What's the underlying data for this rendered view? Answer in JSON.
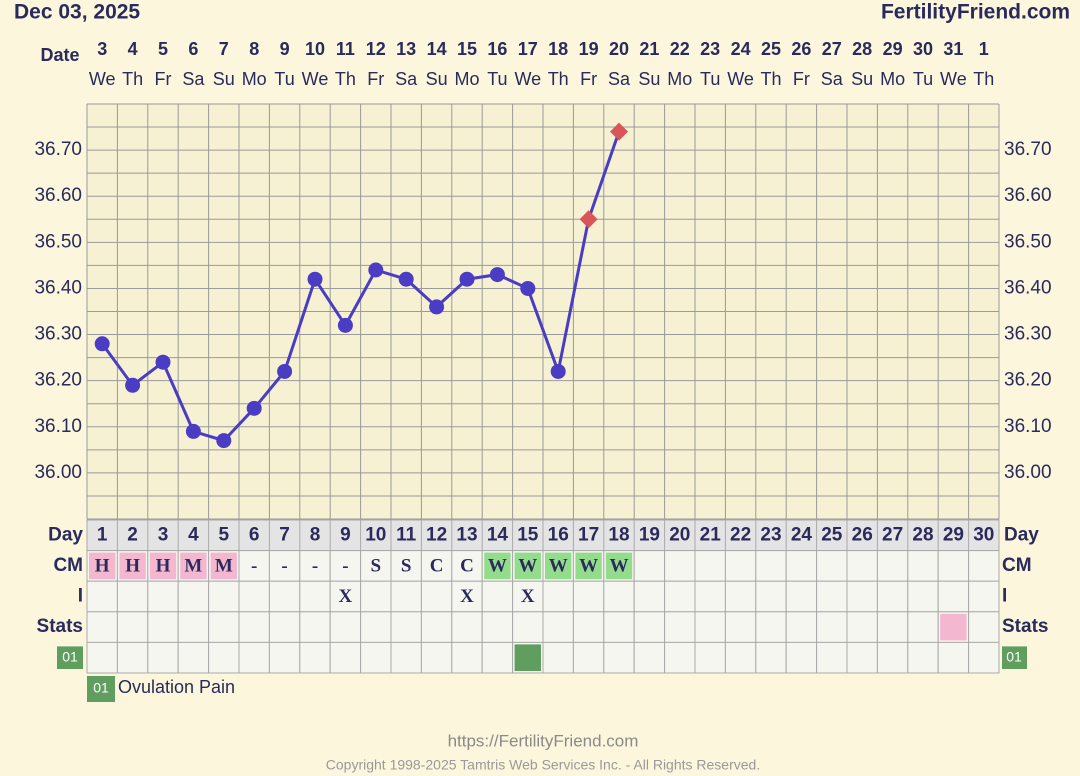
{
  "header": {
    "date": "Dec 03, 2025",
    "site": "FertilityFriend.com"
  },
  "chart_data": {
    "type": "line",
    "x_label": "Date",
    "dates": [
      3,
      4,
      5,
      6,
      7,
      8,
      9,
      10,
      11,
      12,
      13,
      14,
      15,
      16,
      17,
      18,
      19,
      20,
      21,
      22,
      23,
      24,
      25,
      26,
      27,
      28,
      29,
      30,
      31,
      1
    ],
    "weekdays": [
      "We",
      "Th",
      "Fr",
      "Sa",
      "Su",
      "Mo",
      "Tu",
      "We",
      "Th",
      "Fr",
      "Sa",
      "Su",
      "Mo",
      "Tu",
      "We",
      "Th",
      "Fr",
      "Sa",
      "Su",
      "Mo",
      "Tu",
      "We",
      "Th",
      "Fr",
      "Sa",
      "Su",
      "Mo",
      "Tu",
      "We",
      "Th"
    ],
    "day_label": "Day",
    "categories": [
      1,
      2,
      3,
      4,
      5,
      6,
      7,
      8,
      9,
      10,
      11,
      12,
      13,
      14,
      15,
      16,
      17,
      18,
      19,
      20,
      21,
      22,
      23,
      24,
      25,
      26,
      27,
      28,
      29,
      30
    ],
    "series": [
      {
        "color": "#4b3cc4",
        "values": [
          36.28,
          36.19,
          36.24,
          36.09,
          36.07,
          36.14,
          36.22,
          36.42,
          36.32,
          36.44,
          36.42,
          36.36,
          36.42,
          36.43,
          36.4,
          36.22,
          36.55,
          36.74,
          null,
          null,
          null,
          null,
          null,
          null,
          null,
          null,
          null,
          null,
          null,
          null
        ],
        "marker_colors": [
          "#4b3cc4",
          "#4b3cc4",
          "#4b3cc4",
          "#4b3cc4",
          "#4b3cc4",
          "#4b3cc4",
          "#4b3cc4",
          "#4b3cc4",
          "#4b3cc4",
          "#4b3cc4",
          "#4b3cc4",
          "#4b3cc4",
          "#4b3cc4",
          "#4b3cc4",
          "#4b3cc4",
          "#4b3cc4",
          "#d9555a",
          "#d9555a",
          null,
          null,
          null,
          null,
          null,
          null,
          null,
          null,
          null,
          null,
          null,
          null
        ],
        "markers": [
          "circle",
          "circle",
          "circle",
          "circle",
          "circle",
          "circle",
          "circle",
          "circle",
          "circle",
          "circle",
          "circle",
          "circle",
          "circle",
          "circle",
          "circle",
          "circle",
          "diamond",
          "diamond",
          null,
          null,
          null,
          null,
          null,
          null,
          null,
          null,
          null,
          null,
          null,
          null
        ]
      }
    ],
    "ylim": [
      35.9,
      36.8
    ],
    "yticks": [
      {
        "value": 36.0,
        "label": "36.00"
      },
      {
        "value": 36.1,
        "label": "36.10"
      },
      {
        "value": 36.2,
        "label": "36.20"
      },
      {
        "value": 36.3,
        "label": "36.30"
      },
      {
        "value": 36.4,
        "label": "36.40"
      },
      {
        "value": 36.5,
        "label": "36.50"
      },
      {
        "value": 36.6,
        "label": "36.60"
      },
      {
        "value": 36.7,
        "label": "36.70"
      }
    ],
    "ygrid": [
      35.9,
      35.95,
      36.0,
      36.05,
      36.1,
      36.15,
      36.2,
      36.25,
      36.3,
      36.35,
      36.4,
      36.45,
      36.5,
      36.55,
      36.6,
      36.65,
      36.7,
      36.75,
      36.8
    ],
    "grid": true
  },
  "table": {
    "rows": [
      {
        "label": "CM",
        "cells": [
          "H",
          "H",
          "H",
          "M",
          "M",
          "-",
          "-",
          "-",
          "-",
          "S",
          "S",
          "C",
          "C",
          "W",
          "W",
          "W",
          "W",
          "W",
          null,
          null,
          null,
          null,
          null,
          null,
          null,
          null,
          null,
          null,
          null,
          null
        ],
        "colors": [
          "#f3b8cf",
          "#f3b8cf",
          "#f3b8cf",
          "#f3b8cf",
          "#f3b8cf",
          null,
          null,
          null,
          null,
          null,
          null,
          null,
          null,
          "#93dc8c",
          "#93dc8c",
          "#93dc8c",
          "#93dc8c",
          "#93dc8c",
          null,
          null,
          null,
          null,
          null,
          null,
          null,
          null,
          null,
          null,
          null,
          null
        ]
      },
      {
        "label": "I",
        "cells": [
          null,
          null,
          null,
          null,
          null,
          null,
          null,
          null,
          "X",
          null,
          null,
          null,
          "X",
          null,
          "X",
          null,
          null,
          null,
          null,
          null,
          null,
          null,
          null,
          null,
          null,
          null,
          null,
          null,
          null,
          null
        ],
        "colors": [
          null,
          null,
          null,
          null,
          null,
          null,
          null,
          null,
          null,
          null,
          null,
          null,
          null,
          null,
          null,
          null,
          null,
          null,
          null,
          null,
          null,
          null,
          null,
          null,
          null,
          null,
          null,
          null,
          null,
          null
        ]
      },
      {
        "label": "Stats",
        "cells": [
          null,
          null,
          null,
          null,
          null,
          null,
          null,
          null,
          null,
          null,
          null,
          null,
          null,
          null,
          null,
          null,
          null,
          null,
          null,
          null,
          null,
          null,
          null,
          null,
          null,
          null,
          null,
          null,
          null,
          null
        ],
        "colors": [
          null,
          null,
          null,
          null,
          null,
          null,
          null,
          null,
          null,
          null,
          null,
          null,
          null,
          null,
          null,
          null,
          null,
          null,
          null,
          null,
          null,
          null,
          null,
          null,
          null,
          null,
          null,
          null,
          "#f3b8cf",
          null
        ]
      },
      {
        "label": "01",
        "label_color": "#5f9e5f",
        "cells": [
          null,
          null,
          null,
          null,
          null,
          null,
          null,
          null,
          null,
          null,
          null,
          null,
          null,
          null,
          null,
          null,
          null,
          null,
          null,
          null,
          null,
          null,
          null,
          null,
          null,
          null,
          null,
          null,
          null,
          null
        ],
        "colors": [
          null,
          null,
          null,
          null,
          null,
          null,
          null,
          null,
          null,
          null,
          null,
          null,
          null,
          null,
          "#5f9e5f",
          null,
          null,
          null,
          null,
          null,
          null,
          null,
          null,
          null,
          null,
          null,
          null,
          null,
          null,
          null
        ]
      }
    ]
  },
  "legend": {
    "code": "01",
    "label": "Ovulation Pain",
    "color": "#5f9e5f"
  },
  "footer": {
    "url": "https://FertilityFriend.com",
    "copyright": "Copyright 1998-2025 Tamtris Web Services Inc. - All Rights Reserved."
  }
}
